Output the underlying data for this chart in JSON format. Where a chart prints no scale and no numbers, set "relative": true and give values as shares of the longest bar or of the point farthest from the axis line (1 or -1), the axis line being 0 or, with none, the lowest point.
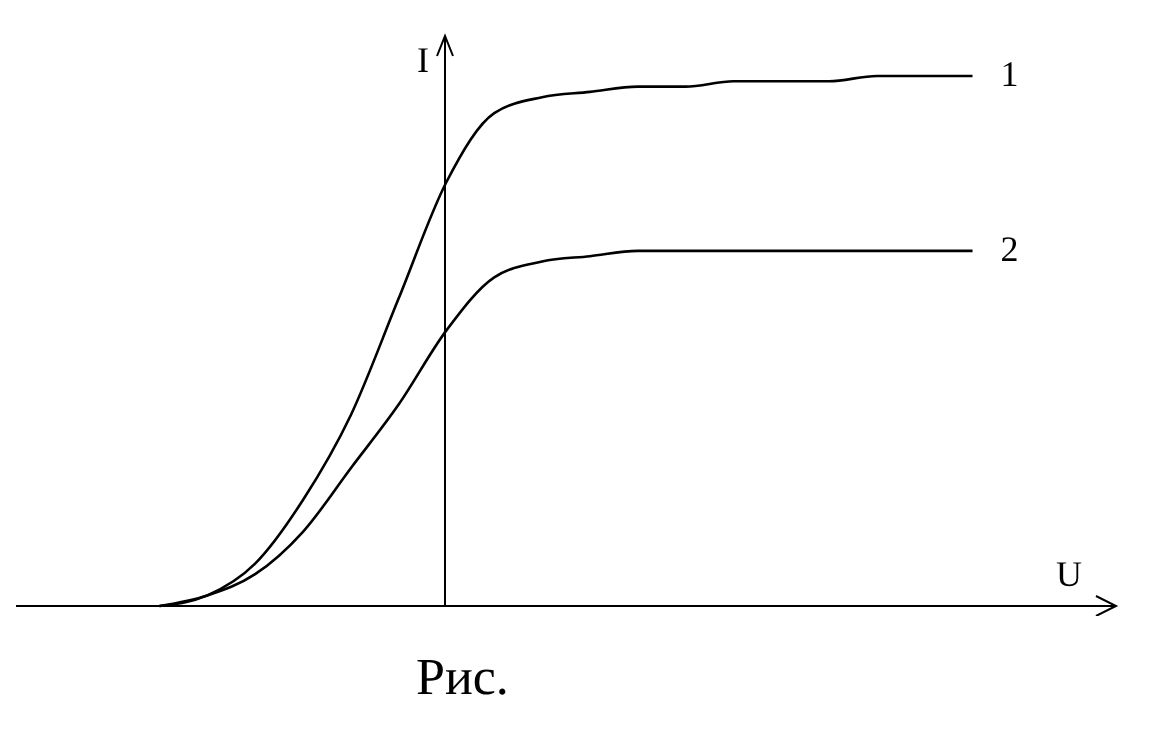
{
  "chart_data": {
    "type": "line",
    "relative": true,
    "xlabel": "U",
    "ylabel": "I",
    "grid": false,
    "legend": false,
    "marker": "none",
    "line_style": "solid",
    "categories": [
      null,
      null,
      null,
      null,
      null,
      null,
      null,
      null,
      null,
      null,
      null,
      null,
      null,
      null,
      null,
      null,
      null,
      null,
      null,
      null,
      null,
      null,
      null,
      null
    ],
    "series": [
      {
        "name": "1",
        "color": "#000000",
        "values": [
          null,
          null,
          null,
          0,
          0.02,
          0.08,
          0.2,
          0.36,
          0.58,
          0.8,
          0.93,
          0.96,
          0.97,
          0.98,
          0.98,
          0.99,
          0.99,
          0.99,
          1,
          1,
          1,
          null,
          null,
          null
        ]
      },
      {
        "name": "2",
        "color": "#000000",
        "values": [
          null,
          null,
          null,
          0,
          0.02,
          0.06,
          0.14,
          0.26,
          0.38,
          0.52,
          0.62,
          0.65,
          0.66,
          0.67,
          0.67,
          0.67,
          0.67,
          0.67,
          0.67,
          0.67,
          0.67,
          null,
          null,
          null
        ]
      }
    ],
    "annotations": [
      "Рис."
    ]
  }
}
